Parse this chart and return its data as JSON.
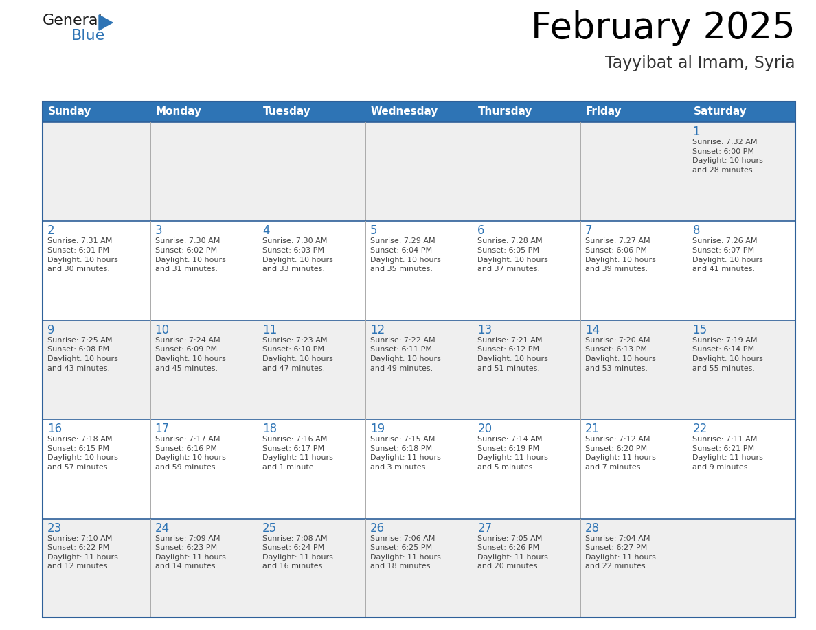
{
  "title": "February 2025",
  "subtitle": "Tayyibat al Imam, Syria",
  "days_of_week": [
    "Sunday",
    "Monday",
    "Tuesday",
    "Wednesday",
    "Thursday",
    "Friday",
    "Saturday"
  ],
  "header_bg": "#2E74B5",
  "header_text": "#FFFFFF",
  "cell_bg_white": "#FFFFFF",
  "cell_bg_gray": "#EFEFEF",
  "border_color_dark": "#2E6099",
  "border_color_light": "#AAAAAA",
  "day_num_color": "#2E74B5",
  "info_color": "#444444",
  "title_color": "#000000",
  "subtitle_color": "#333333",
  "logo_general_color": "#1a1a1a",
  "logo_blue_color": "#2E74B5",
  "weeks": [
    [
      {
        "day": null,
        "info": null
      },
      {
        "day": null,
        "info": null
      },
      {
        "day": null,
        "info": null
      },
      {
        "day": null,
        "info": null
      },
      {
        "day": null,
        "info": null
      },
      {
        "day": null,
        "info": null
      },
      {
        "day": 1,
        "info": "Sunrise: 7:32 AM\nSunset: 6:00 PM\nDaylight: 10 hours\nand 28 minutes."
      }
    ],
    [
      {
        "day": 2,
        "info": "Sunrise: 7:31 AM\nSunset: 6:01 PM\nDaylight: 10 hours\nand 30 minutes."
      },
      {
        "day": 3,
        "info": "Sunrise: 7:30 AM\nSunset: 6:02 PM\nDaylight: 10 hours\nand 31 minutes."
      },
      {
        "day": 4,
        "info": "Sunrise: 7:30 AM\nSunset: 6:03 PM\nDaylight: 10 hours\nand 33 minutes."
      },
      {
        "day": 5,
        "info": "Sunrise: 7:29 AM\nSunset: 6:04 PM\nDaylight: 10 hours\nand 35 minutes."
      },
      {
        "day": 6,
        "info": "Sunrise: 7:28 AM\nSunset: 6:05 PM\nDaylight: 10 hours\nand 37 minutes."
      },
      {
        "day": 7,
        "info": "Sunrise: 7:27 AM\nSunset: 6:06 PM\nDaylight: 10 hours\nand 39 minutes."
      },
      {
        "day": 8,
        "info": "Sunrise: 7:26 AM\nSunset: 6:07 PM\nDaylight: 10 hours\nand 41 minutes."
      }
    ],
    [
      {
        "day": 9,
        "info": "Sunrise: 7:25 AM\nSunset: 6:08 PM\nDaylight: 10 hours\nand 43 minutes."
      },
      {
        "day": 10,
        "info": "Sunrise: 7:24 AM\nSunset: 6:09 PM\nDaylight: 10 hours\nand 45 minutes."
      },
      {
        "day": 11,
        "info": "Sunrise: 7:23 AM\nSunset: 6:10 PM\nDaylight: 10 hours\nand 47 minutes."
      },
      {
        "day": 12,
        "info": "Sunrise: 7:22 AM\nSunset: 6:11 PM\nDaylight: 10 hours\nand 49 minutes."
      },
      {
        "day": 13,
        "info": "Sunrise: 7:21 AM\nSunset: 6:12 PM\nDaylight: 10 hours\nand 51 minutes."
      },
      {
        "day": 14,
        "info": "Sunrise: 7:20 AM\nSunset: 6:13 PM\nDaylight: 10 hours\nand 53 minutes."
      },
      {
        "day": 15,
        "info": "Sunrise: 7:19 AM\nSunset: 6:14 PM\nDaylight: 10 hours\nand 55 minutes."
      }
    ],
    [
      {
        "day": 16,
        "info": "Sunrise: 7:18 AM\nSunset: 6:15 PM\nDaylight: 10 hours\nand 57 minutes."
      },
      {
        "day": 17,
        "info": "Sunrise: 7:17 AM\nSunset: 6:16 PM\nDaylight: 10 hours\nand 59 minutes."
      },
      {
        "day": 18,
        "info": "Sunrise: 7:16 AM\nSunset: 6:17 PM\nDaylight: 11 hours\nand 1 minute."
      },
      {
        "day": 19,
        "info": "Sunrise: 7:15 AM\nSunset: 6:18 PM\nDaylight: 11 hours\nand 3 minutes."
      },
      {
        "day": 20,
        "info": "Sunrise: 7:14 AM\nSunset: 6:19 PM\nDaylight: 11 hours\nand 5 minutes."
      },
      {
        "day": 21,
        "info": "Sunrise: 7:12 AM\nSunset: 6:20 PM\nDaylight: 11 hours\nand 7 minutes."
      },
      {
        "day": 22,
        "info": "Sunrise: 7:11 AM\nSunset: 6:21 PM\nDaylight: 11 hours\nand 9 minutes."
      }
    ],
    [
      {
        "day": 23,
        "info": "Sunrise: 7:10 AM\nSunset: 6:22 PM\nDaylight: 11 hours\nand 12 minutes."
      },
      {
        "day": 24,
        "info": "Sunrise: 7:09 AM\nSunset: 6:23 PM\nDaylight: 11 hours\nand 14 minutes."
      },
      {
        "day": 25,
        "info": "Sunrise: 7:08 AM\nSunset: 6:24 PM\nDaylight: 11 hours\nand 16 minutes."
      },
      {
        "day": 26,
        "info": "Sunrise: 7:06 AM\nSunset: 6:25 PM\nDaylight: 11 hours\nand 18 minutes."
      },
      {
        "day": 27,
        "info": "Sunrise: 7:05 AM\nSunset: 6:26 PM\nDaylight: 11 hours\nand 20 minutes."
      },
      {
        "day": 28,
        "info": "Sunrise: 7:04 AM\nSunset: 6:27 PM\nDaylight: 11 hours\nand 22 minutes."
      },
      {
        "day": null,
        "info": null
      }
    ]
  ]
}
